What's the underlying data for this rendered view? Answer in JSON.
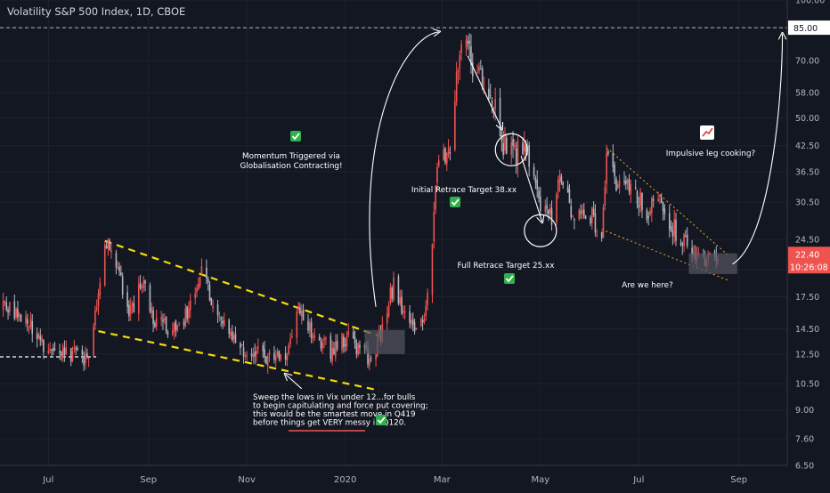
{
  "colors": {
    "background": "#131722",
    "up": "#b2b5be",
    "down": "#ef5350",
    "wedge_line": "#f5d90a",
    "wedge_line_2": "#f0a830",
    "text": "#d1d4dc",
    "axis_text": "#b2b5be",
    "price_tag": "#ef5350",
    "checkmark": "#2eb14a",
    "annotation_box": "#50535e"
  },
  "chart_data": {
    "type": "candlestick",
    "title": "Volatility S&P 500 Index, 1D, CBOE",
    "y_scale": "log",
    "ylim": [
      6.5,
      100
    ],
    "y_ticks": [
      "6.50",
      "7.60",
      "9.00",
      "10.50",
      "12.50",
      "14.50",
      "17.50",
      "20.50",
      "24.50",
      "30.50",
      "36.50",
      "42.50",
      "50.00",
      "58.00",
      "70.00",
      "85.00",
      "100.00"
    ],
    "x_ticks": [
      "Jul",
      "Sep",
      "Nov",
      "2020",
      "Mar",
      "May",
      "Jul",
      "Sep"
    ],
    "x_range": [
      "2019-06-01",
      "2020-10-01"
    ],
    "current_price": "22.40",
    "countdown": "10:26:08",
    "target_level": "85.00",
    "support_level": 12.3,
    "series": [
      {
        "date": "2019-06-03",
        "close": 16.5
      },
      {
        "date": "2019-06-17",
        "close": 15.2
      },
      {
        "date": "2019-07-03",
        "close": 12.5
      },
      {
        "date": "2019-07-15",
        "close": 12.6
      },
      {
        "date": "2019-07-26",
        "close": 12.2
      },
      {
        "date": "2019-08-05",
        "close": 24.5
      },
      {
        "date": "2019-08-12",
        "close": 21.0
      },
      {
        "date": "2019-08-21",
        "close": 15.8
      },
      {
        "date": "2019-08-28",
        "close": 19.5
      },
      {
        "date": "2019-09-05",
        "close": 15.0
      },
      {
        "date": "2019-09-16",
        "close": 14.5
      },
      {
        "date": "2019-09-25",
        "close": 16.0
      },
      {
        "date": "2019-10-03",
        "close": 20.5
      },
      {
        "date": "2019-10-10",
        "close": 17.5
      },
      {
        "date": "2019-10-22",
        "close": 14.0
      },
      {
        "date": "2019-11-01",
        "close": 12.4
      },
      {
        "date": "2019-11-15",
        "close": 12.3
      },
      {
        "date": "2019-11-25",
        "close": 12.0
      },
      {
        "date": "2019-12-03",
        "close": 15.9
      },
      {
        "date": "2019-12-12",
        "close": 14.0
      },
      {
        "date": "2019-12-24",
        "close": 12.7
      },
      {
        "date": "2020-01-03",
        "close": 14.0
      },
      {
        "date": "2020-01-10",
        "close": 12.5
      },
      {
        "date": "2020-01-17",
        "close": 12.1
      },
      {
        "date": "2020-01-24",
        "close": 14.6
      },
      {
        "date": "2020-01-31",
        "close": 18.8
      },
      {
        "date": "2020-02-07",
        "close": 15.5
      },
      {
        "date": "2020-02-14",
        "close": 14.0
      },
      {
        "date": "2020-02-21",
        "close": 17.1
      },
      {
        "date": "2020-02-24",
        "close": 25.0
      },
      {
        "date": "2020-02-27",
        "close": 39.2
      },
      {
        "date": "2020-03-05",
        "close": 39.6
      },
      {
        "date": "2020-03-09",
        "close": 54.5
      },
      {
        "date": "2020-03-12",
        "close": 75.5
      },
      {
        "date": "2020-03-16",
        "close": 82.7
      },
      {
        "date": "2020-03-20",
        "close": 66.0
      },
      {
        "date": "2020-03-26",
        "close": 61.0
      },
      {
        "date": "2020-04-01",
        "close": 57.0
      },
      {
        "date": "2020-04-08",
        "close": 43.3
      },
      {
        "date": "2020-04-16",
        "close": 40.1
      },
      {
        "date": "2020-04-21",
        "close": 45.4
      },
      {
        "date": "2020-04-29",
        "close": 31.2
      },
      {
        "date": "2020-05-08",
        "close": 27.9
      },
      {
        "date": "2020-05-13",
        "close": 35.3
      },
      {
        "date": "2020-05-22",
        "close": 28.2
      },
      {
        "date": "2020-06-01",
        "close": 28.2
      },
      {
        "date": "2020-06-08",
        "close": 25.8
      },
      {
        "date": "2020-06-11",
        "close": 40.8
      },
      {
        "date": "2020-06-17",
        "close": 33.5
      },
      {
        "date": "2020-06-26",
        "close": 34.7
      },
      {
        "date": "2020-07-06",
        "close": 27.9
      },
      {
        "date": "2020-07-13",
        "close": 32.2
      },
      {
        "date": "2020-07-23",
        "close": 26.1
      },
      {
        "date": "2020-07-31",
        "close": 24.5
      },
      {
        "date": "2020-08-07",
        "close": 22.2
      },
      {
        "date": "2020-08-14",
        "close": 22.0
      },
      {
        "date": "2020-08-19",
        "close": 22.4
      }
    ],
    "annotations": {
      "momentum": "Momentum Triggered via\nGlobalisation Contracting!",
      "initial_retrace": "Initial Retrace Target 38.xx",
      "full_retrace": "Full Retrace Target 25.xx",
      "impulsive": "Impulsive leg cooking?",
      "are_we_here": "Are we here?",
      "sweep": "Sweep the lows in Vix under 12...for bulls\nto begin capitulating and force put covering;\nthis would be the smartest move in Q419\nbefore things get VERY messy in Q120."
    }
  }
}
